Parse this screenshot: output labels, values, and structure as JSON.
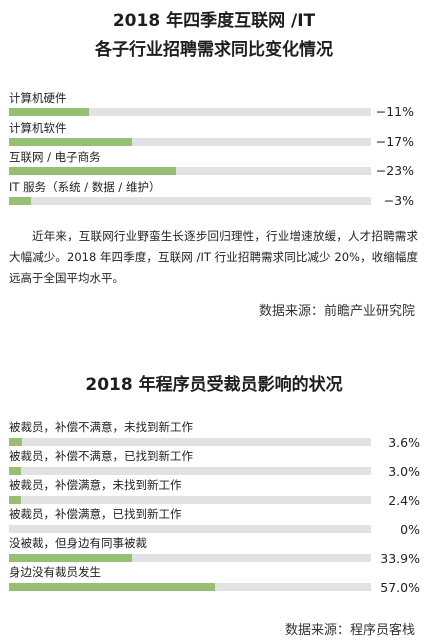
{
  "colors": {
    "bar_fill": "#97bf73",
    "bar_track": "#e2e2e2",
    "text": "#222222"
  },
  "section1": {
    "title_line1": "2018 年四季度互联网 /IT",
    "title_line2": "各子行业招聘需求同比变化情况",
    "paragraph": "近年来，互联网行业野蛮生长逐步回归理性，行业增速放缓，人才招聘需求大幅减少。2018 年四季度，互联网 /IT 行业招聘需求同比减少 20%，收缩幅度远高于全国平均水平。",
    "source": "数据来源：前瞻产业研究院"
  },
  "section2": {
    "title": "2018 年程序员受裁员影响的状况",
    "source": "数据来源：程序员客栈"
  },
  "chart_data": [
    {
      "type": "bar",
      "orientation": "horizontal",
      "title": "2018 年四季度互联网 /IT 各子行业招聘需求同比变化情况",
      "categories": [
        "计算机硬件",
        "计算机软件",
        "互联网 / 电子商务",
        "IT 服务（系统 / 数据 / 维护）"
      ],
      "values": [
        -11,
        -17,
        -23,
        -3
      ],
      "value_labels": [
        "−11%",
        "−17%",
        "−23%",
        "−3%"
      ],
      "unit": "%",
      "bar_scale_max_abs": 50
    },
    {
      "type": "bar",
      "orientation": "horizontal",
      "title": "2018 年程序员受裁员影响的状况",
      "categories": [
        "被裁员，补偿不满意，未找到新工作",
        "被裁员，补偿不满意，已找到新工作",
        "被裁员，补偿满意，未找到新工作",
        "被裁员，补偿满意，已找到新工作",
        "没被裁，但身边有同事被裁",
        "身边没有裁员发生"
      ],
      "values": [
        3.6,
        3.0,
        2.4,
        0,
        33.9,
        57.0
      ],
      "value_labels": [
        "3.6%",
        "3.0%",
        "2.4%",
        "0%",
        "33.9%",
        "57.0%"
      ],
      "unit": "%",
      "bar_scale_max": 100
    }
  ]
}
